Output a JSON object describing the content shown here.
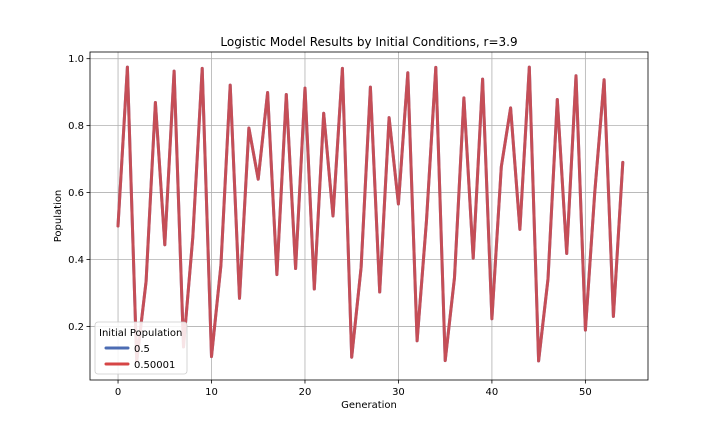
{
  "chart_data": {
    "type": "line",
    "title": "Logistic Model Results by Initial Conditions, r=3.9",
    "xlabel": "Generation",
    "ylabel": "Population",
    "xlim": [
      -3,
      56.7
    ],
    "ylim": [
      0.04,
      1.02
    ],
    "xticks": [
      0,
      10,
      20,
      30,
      40,
      50
    ],
    "yticks": [
      0.2,
      0.4,
      0.6,
      0.8,
      1.0
    ],
    "xtick_labels": [
      "0",
      "10",
      "20",
      "30",
      "40",
      "50"
    ],
    "ytick_labels": [
      "0.2",
      "0.4",
      "0.6",
      "0.8",
      "1.0"
    ],
    "grid": true,
    "legend": {
      "title": "Initial Population",
      "placement": "lower-left"
    },
    "x": [
      0,
      1,
      2,
      3,
      4,
      5,
      6,
      7,
      8,
      9,
      10,
      11,
      12,
      13,
      14,
      15,
      16,
      17,
      18,
      19,
      20,
      21,
      22,
      23,
      24,
      25,
      26,
      27,
      28,
      29,
      30,
      31,
      32,
      33,
      34,
      35,
      36,
      37,
      38,
      39,
      40,
      41,
      42,
      43,
      44,
      45,
      46,
      47,
      48,
      49,
      50,
      51,
      52,
      53,
      54
    ],
    "series": [
      {
        "name": "0.5",
        "color": "#4c6cb3",
        "values": [
          0.5,
          0.975,
          0.095,
          0.335,
          0.869,
          0.444,
          0.963,
          0.139,
          0.467,
          0.971,
          0.11,
          0.382,
          0.921,
          0.284,
          0.793,
          0.64,
          0.899,
          0.355,
          0.893,
          0.373,
          0.912,
          0.312,
          0.837,
          0.53,
          0.971,
          0.108,
          0.376,
          0.915,
          0.303,
          0.824,
          0.566,
          0.958,
          0.157,
          0.517,
          0.974,
          0.098,
          0.346,
          0.883,
          0.404,
          0.939,
          0.223,
          0.677,
          0.853,
          0.49,
          0.975,
          0.097,
          0.342,
          0.878,
          0.418,
          0.949,
          0.189,
          0.598,
          0.937,
          0.23,
          0.69
        ]
      },
      {
        "name": "0.50001",
        "color": "#d64545",
        "values": [
          0.50001,
          0.975,
          0.095,
          0.335,
          0.869,
          0.444,
          0.963,
          0.139,
          0.467,
          0.971,
          0.11,
          0.382,
          0.921,
          0.284,
          0.793,
          0.64,
          0.899,
          0.355,
          0.893,
          0.373,
          0.912,
          0.312,
          0.837,
          0.53,
          0.971,
          0.108,
          0.376,
          0.915,
          0.303,
          0.824,
          0.566,
          0.958,
          0.157,
          0.517,
          0.974,
          0.098,
          0.346,
          0.883,
          0.404,
          0.939,
          0.223,
          0.677,
          0.853,
          0.49,
          0.975,
          0.097,
          0.342,
          0.878,
          0.418,
          0.949,
          0.189,
          0.598,
          0.937,
          0.23,
          0.69
        ]
      }
    ]
  }
}
